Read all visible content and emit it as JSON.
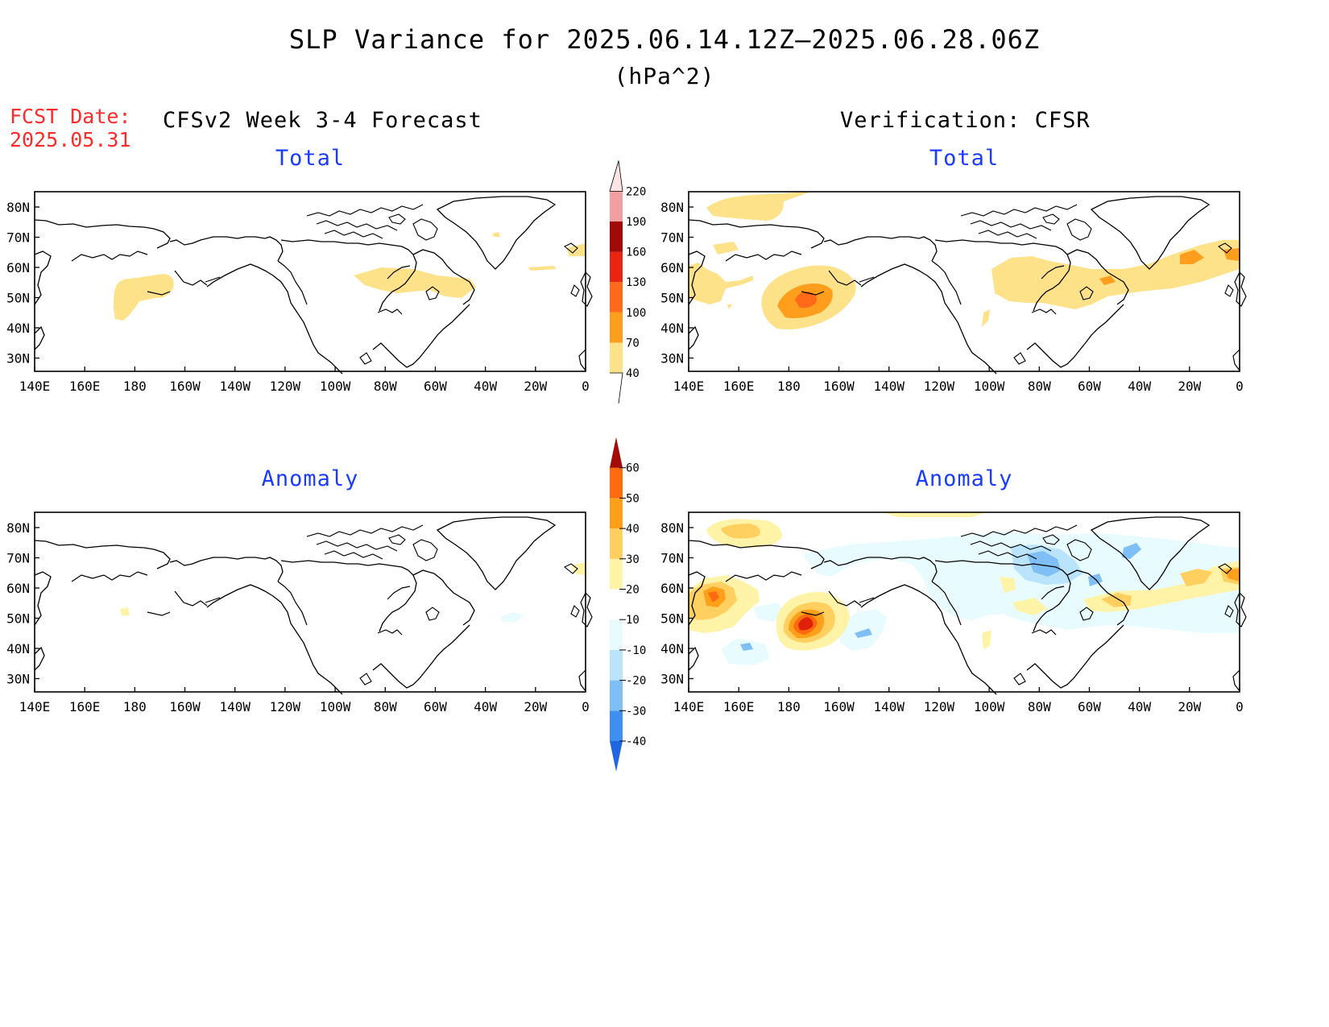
{
  "title": "SLP Variance for 2025.06.14.12Z–2025.06.28.06Z",
  "units": "(hPa^2)",
  "fcst_date_label": "FCST Date:",
  "fcst_date": "2025.05.31",
  "left_header": "CFSv2 Week 3-4 Forecast",
  "right_header": "Verification: CFSR",
  "panels": {
    "fc_total": "Total",
    "vf_total": "Total",
    "fc_anom": "Anomaly",
    "vf_anom": "Anomaly"
  },
  "axes": {
    "lon_labels": [
      "140E",
      "160E",
      "180",
      "160W",
      "140W",
      "120W",
      "100W",
      "80W",
      "60W",
      "40W",
      "20W",
      "0"
    ],
    "lat_labels": [
      "80N",
      "70N",
      "60N",
      "50N",
      "40N",
      "30N"
    ]
  },
  "colorbar_total": {
    "levels": [
      "40",
      "70",
      "100",
      "130",
      "160",
      "190",
      "220"
    ],
    "colors": [
      "#fde28a",
      "#ff9d1c",
      "#ff6a1a",
      "#e82412",
      "#a00a08",
      "#f0a0a0",
      "#ffe4e4"
    ]
  },
  "colorbar_anom": {
    "levels": [
      "-40",
      "-30",
      "-20",
      "-10",
      "10",
      "20",
      "30",
      "40",
      "50",
      "60"
    ],
    "colors": [
      "#1f66e0",
      "#3f8ff0",
      "#7fbff5",
      "#b9e4fb",
      "#e8fbff",
      "#ffffff",
      "#fff3a8",
      "#ffd060",
      "#ff9f1a",
      "#ff6a0f",
      "#e02008",
      "#a40a08"
    ]
  },
  "colors": {
    "title_red": "#ff2a2a",
    "subtitle_blue": "#1a3cff"
  }
}
